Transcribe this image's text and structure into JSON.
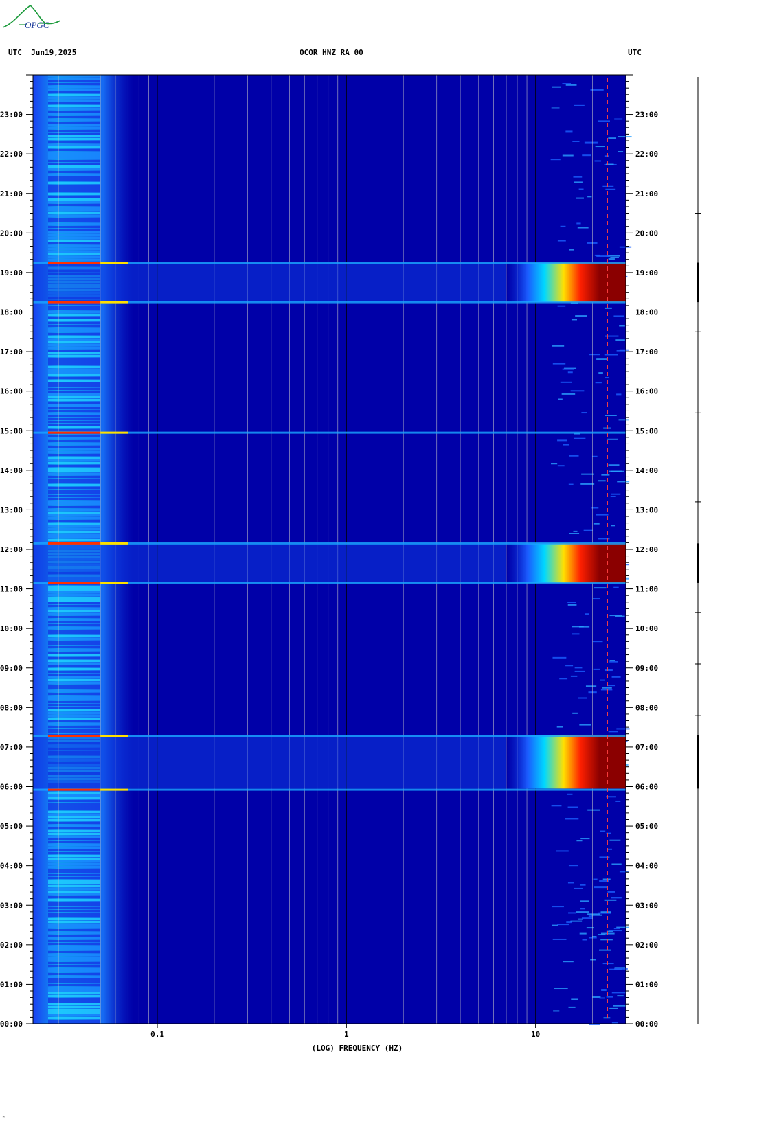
{
  "header": {
    "logo_text": "OPGC",
    "left_label": "UTC  Jun19,2025",
    "center_label": "OCOR HNZ RA 00",
    "right_label": "UTC"
  },
  "colors": {
    "background": "#0000a8",
    "low": "#0a2ad8",
    "mid": "#00c8ff",
    "high": "#ffe000",
    "peak": "#8b0000",
    "grid_major": "#000000",
    "grid_minor": "#c8c8c8",
    "logo": "#1a9a3a"
  },
  "chart_data": {
    "type": "heatmap",
    "title": "OCOR HNZ RA 00",
    "date": "Jun19,2025",
    "xlabel": "(LOG) FREQUENCY (HZ)",
    "ylabel": "UTC",
    "x_scale": "log",
    "xlim": [
      0.022,
      30
    ],
    "x_ticks": [
      0.1,
      1,
      10
    ],
    "x_tick_labels": [
      "0.1",
      "1",
      "10"
    ],
    "ylim_hours": [
      0,
      24
    ],
    "y_tick_labels": [
      "00:00",
      "01:00",
      "02:00",
      "03:00",
      "04:00",
      "05:00",
      "06:00",
      "07:00",
      "08:00",
      "09:00",
      "10:00",
      "11:00",
      "12:00",
      "13:00",
      "14:00",
      "15:00",
      "16:00",
      "17:00",
      "18:00",
      "19:00",
      "20:00",
      "21:00",
      "22:00",
      "23:00"
    ],
    "high_energy_bursts": [
      {
        "start_hour": 5.95,
        "end_hour": 7.3,
        "min_freq_hz": 7
      },
      {
        "start_hour": 11.15,
        "end_hour": 12.15,
        "min_freq_hz": 7
      },
      {
        "start_hour": 18.25,
        "end_hour": 19.25,
        "min_freq_hz": 7
      }
    ],
    "broadband_lines_hours": [
      5.92,
      7.27,
      11.15,
      12.15,
      14.95,
      18.25,
      19.25
    ],
    "persistent_line_hz": 24
  },
  "footer": {
    "corner_mark": "ᴹ"
  }
}
